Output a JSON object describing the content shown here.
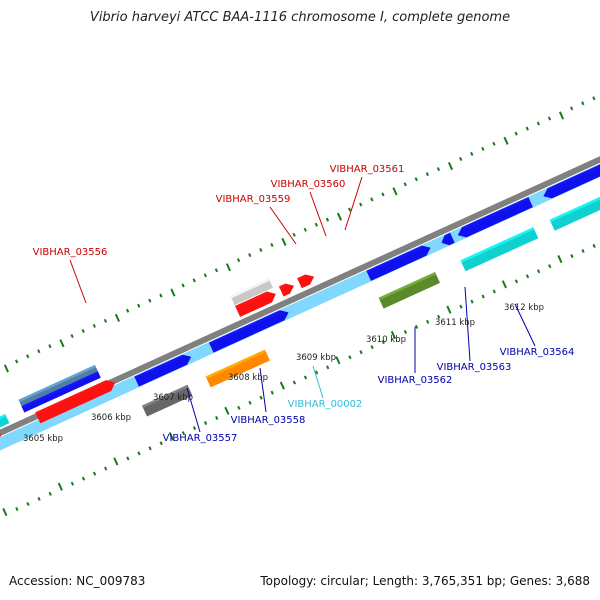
{
  "title": "Vibrio harveyi ATCC BAA-1116 chromosome I, complete genome",
  "footer": {
    "accession": "Accession: NC_009783",
    "summary": "Topology: circular; Length: 3,765,351 bp; Genes: 3,688"
  },
  "colors": {
    "backbone": "#80d8ff",
    "backbone_edge": "#808080",
    "ticks": "#1a7a1a",
    "label_forward": "#cc0000",
    "label_reverse": "#0000aa",
    "label_rna": "#33bbdd",
    "gene_red": "#ff1010",
    "gene_blue": "#1010ee",
    "gene_cyan": "#10d0d0",
    "gene_gray": "#666666",
    "gene_orange": "#ff8800",
    "gene_olive": "#5c8a2a",
    "gene_light_gray": "#c8c8c8",
    "gene_slate": "#4f7fa5"
  },
  "scale_labels": [
    "3605 kbp",
    "3606 kbp",
    "3607 kbp",
    "3608 kbp",
    "3609 kbp",
    "3610 kbp",
    "3611 kbp",
    "3612 kbp"
  ],
  "gene_labels": {
    "VIBHAR_03556": "VIBHAR_03556",
    "VIBHAR_03559": "VIBHAR_03559",
    "VIBHAR_03560": "VIBHAR_03560",
    "VIBHAR_03561": "VIBHAR_03561",
    "VIBHAR_03557": "VIBHAR_03557",
    "VIBHAR_03558": "VIBHAR_03558",
    "VIBHAR_00002": "VIBHAR_00002",
    "VIBHAR_03562": "VIBHAR_03562",
    "VIBHAR_03563": "VIBHAR_03563",
    "VIBHAR_03564": "VIBHAR_03564"
  }
}
